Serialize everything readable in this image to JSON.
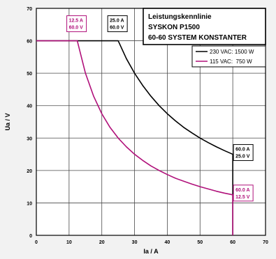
{
  "chart_data": {
    "type": "line",
    "title": "Leistungskennlinie",
    "subtitle_lines": [
      "SYSKON P1500",
      "60-60 SYSTEM KONSTANTER"
    ],
    "xlabel": "Ia / A",
    "ylabel": "Ua / V",
    "xlim": [
      0,
      70
    ],
    "ylim": [
      0,
      70
    ],
    "xticks": [
      0,
      10,
      20,
      30,
      40,
      50,
      60,
      70
    ],
    "yticks": [
      0,
      10,
      20,
      30,
      40,
      50,
      60,
      70
    ],
    "grid": true,
    "legend_position": "top-right",
    "series": [
      {
        "name": "230 VAC: 1500 W",
        "color": "#000000",
        "power_w": 1500,
        "x": [
          0,
          25,
          27.5,
          30,
          32.5,
          35,
          37.5,
          40,
          42.5,
          45,
          47.5,
          50,
          52.5,
          55,
          57.5,
          60,
          60
        ],
        "y": [
          60,
          60,
          54.5,
          50,
          46.2,
          42.9,
          40,
          37.5,
          35.3,
          33.3,
          31.6,
          30,
          28.6,
          27.3,
          26.1,
          25,
          0
        ]
      },
      {
        "name": "115 VAC:  750 W",
        "color": "#b0107a",
        "power_w": 750,
        "x": [
          0,
          12.5,
          15,
          17.5,
          20,
          22.5,
          25,
          27.5,
          30,
          32.5,
          35,
          37.5,
          40,
          42.5,
          45,
          47.5,
          50,
          52.5,
          55,
          57.5,
          60,
          60
        ],
        "y": [
          60,
          60,
          50,
          42.9,
          37.5,
          33.3,
          30,
          27.3,
          25,
          23.1,
          21.4,
          20,
          18.75,
          17.6,
          16.7,
          15.8,
          15,
          14.3,
          13.6,
          13,
          12.5,
          0
        ]
      }
    ],
    "annotations": [
      {
        "lines": [
          "12.5 A",
          "60.0 V"
        ],
        "color": "#b0107a",
        "x": 12.5,
        "y": 60
      },
      {
        "lines": [
          "25.0 A",
          "60.0 V"
        ],
        "color": "#000000",
        "x": 25,
        "y": 60
      },
      {
        "lines": [
          "60.0 A",
          "25.0 V"
        ],
        "color": "#000000",
        "x": 60,
        "y": 25
      },
      {
        "lines": [
          "60.0 A",
          "12.5 V"
        ],
        "color": "#b0107a",
        "x": 60,
        "y": 12.5
      }
    ]
  }
}
